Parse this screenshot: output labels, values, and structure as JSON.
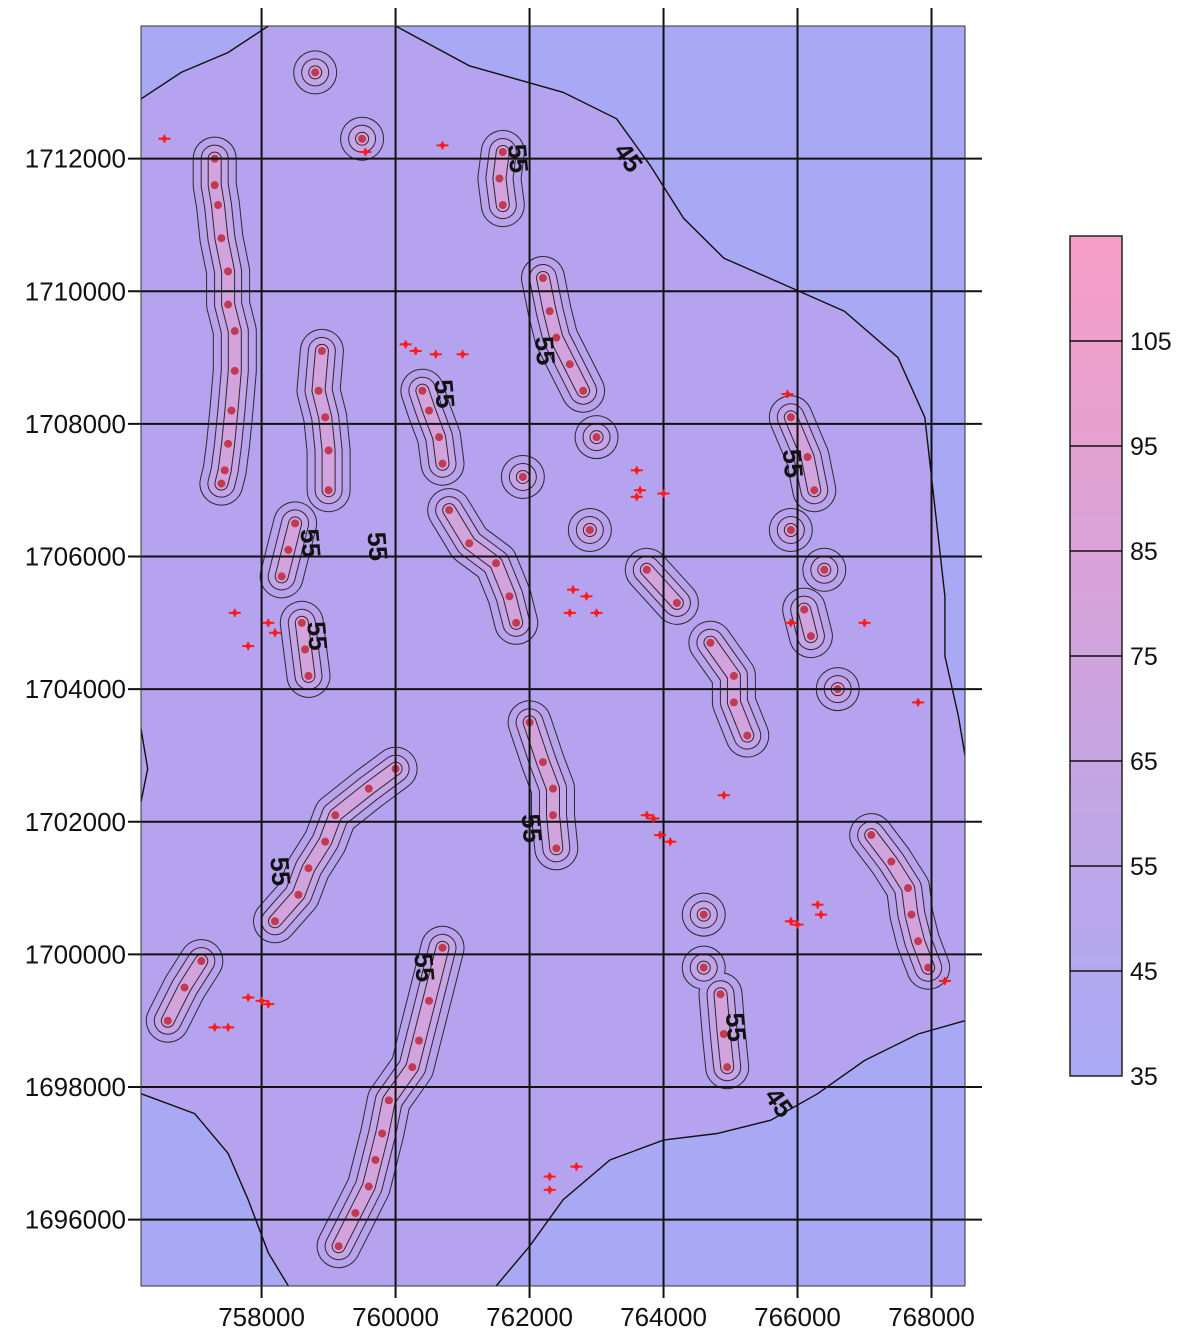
{
  "colors": {
    "low": "#a9a9f4",
    "high": "#f79ec6",
    "contour": "#111111",
    "marker": "#ff1a1a"
  },
  "chart_data": {
    "type": "heatmap",
    "title": "",
    "xlabel": "",
    "ylabel": "",
    "xlim": [
      756200,
      768500
    ],
    "ylim": [
      1695000,
      1714000
    ],
    "x_ticks": [
      758000,
      760000,
      762000,
      764000,
      766000,
      768000
    ],
    "y_ticks": [
      1696000,
      1698000,
      1700000,
      1702000,
      1704000,
      1706000,
      1708000,
      1710000,
      1712000
    ],
    "x_tick_labels": [
      "758000",
      "760000",
      "762000",
      "764000",
      "766000",
      "768000"
    ],
    "y_tick_labels": [
      "1696000",
      "1698000",
      "1700000",
      "1702000",
      "1704000",
      "1706000",
      "1708000",
      "1710000",
      "1712000"
    ],
    "grid": true,
    "colorbar": {
      "range": [
        35,
        115
      ],
      "ticks": [
        35,
        45,
        55,
        65,
        75,
        85,
        95,
        105
      ],
      "tick_labels": [
        "35",
        "45",
        "55",
        "65",
        "75",
        "85",
        "95",
        "105"
      ],
      "placement": "right"
    },
    "contour_levels": [
      45,
      55
    ],
    "contour_labels": [
      {
        "text": "45",
        "x": 763450,
        "y": 1712000
      },
      {
        "text": "45",
        "x": 765700,
        "y": 1697750
      },
      {
        "text": "55",
        "x": 761800,
        "y": 1712000
      },
      {
        "text": "55",
        "x": 762200,
        "y": 1709100
      },
      {
        "text": "55",
        "x": 760700,
        "y": 1708450
      },
      {
        "text": "55",
        "x": 759700,
        "y": 1706150
      },
      {
        "text": "55",
        "x": 758700,
        "y": 1706200
      },
      {
        "text": "55",
        "x": 758800,
        "y": 1704800
      },
      {
        "text": "55",
        "x": 765900,
        "y": 1707400
      },
      {
        "text": "55",
        "x": 762000,
        "y": 1701900
      },
      {
        "text": "55",
        "x": 758250,
        "y": 1701250
      },
      {
        "text": "55",
        "x": 760400,
        "y": 1699800
      },
      {
        "text": "55",
        "x": 765050,
        "y": 1698900
      }
    ],
    "hotspot_lines": [
      [
        [
          757300,
          1712000
        ],
        [
          757300,
          1711600
        ],
        [
          757350,
          1711300
        ],
        [
          757400,
          1710800
        ],
        [
          757500,
          1710300
        ],
        [
          757500,
          1709800
        ],
        [
          757600,
          1709400
        ],
        [
          757600,
          1708800
        ],
        [
          757550,
          1708200
        ],
        [
          757500,
          1707700
        ],
        [
          757450,
          1707300
        ],
        [
          757400,
          1707100
        ]
      ],
      [
        [
          758900,
          1709100
        ],
        [
          758850,
          1708500
        ],
        [
          758950,
          1708100
        ],
        [
          759000,
          1707600
        ],
        [
          759000,
          1707000
        ]
      ],
      [
        [
          758500,
          1706500
        ],
        [
          758400,
          1706100
        ],
        [
          758300,
          1705700
        ]
      ],
      [
        [
          758600,
          1705000
        ],
        [
          758650,
          1704600
        ],
        [
          758700,
          1704200
        ]
      ],
      [
        [
          760400,
          1708500
        ],
        [
          760500,
          1708200
        ],
        [
          760650,
          1707800
        ],
        [
          760700,
          1707400
        ]
      ],
      [
        [
          760800,
          1706700
        ],
        [
          761100,
          1706200
        ],
        [
          761500,
          1705900
        ],
        [
          761700,
          1705400
        ],
        [
          761800,
          1705000
        ]
      ],
      [
        [
          762200,
          1710200
        ],
        [
          762300,
          1709700
        ],
        [
          762400,
          1709300
        ],
        [
          762600,
          1708900
        ],
        [
          762800,
          1708500
        ]
      ],
      [
        [
          761600,
          1712100
        ],
        [
          761550,
          1711700
        ],
        [
          761600,
          1711300
        ]
      ],
      [
        [
          763750,
          1705800
        ],
        [
          764200,
          1705300
        ]
      ],
      [
        [
          764700,
          1704700
        ],
        [
          765050,
          1704200
        ],
        [
          765050,
          1703800
        ],
        [
          765250,
          1703300
        ]
      ],
      [
        [
          765900,
          1708100
        ],
        [
          766150,
          1707500
        ],
        [
          766250,
          1707000
        ]
      ],
      [
        [
          766100,
          1705200
        ],
        [
          766200,
          1704800
        ]
      ],
      [
        [
          762000,
          1703500
        ],
        [
          762200,
          1702900
        ],
        [
          762350,
          1702500
        ],
        [
          762350,
          1702100
        ],
        [
          762400,
          1701600
        ]
      ],
      [
        [
          760000,
          1702800
        ],
        [
          759600,
          1702500
        ],
        [
          759100,
          1702100
        ],
        [
          758950,
          1701700
        ],
        [
          758700,
          1701300
        ],
        [
          758550,
          1700900
        ],
        [
          758200,
          1700500
        ]
      ],
      [
        [
          757100,
          1699900
        ],
        [
          756850,
          1699500
        ],
        [
          756600,
          1699000
        ]
      ],
      [
        [
          760700,
          1700100
        ],
        [
          760500,
          1699300
        ],
        [
          760350,
          1698700
        ],
        [
          760250,
          1698300
        ],
        [
          759900,
          1697800
        ],
        [
          759800,
          1697300
        ],
        [
          759700,
          1696900
        ],
        [
          759600,
          1696500
        ],
        [
          759400,
          1696100
        ],
        [
          759150,
          1695600
        ]
      ],
      [
        [
          767100,
          1701800
        ],
        [
          767400,
          1701400
        ],
        [
          767650,
          1701000
        ],
        [
          767700,
          1700600
        ],
        [
          767800,
          1700200
        ],
        [
          767950,
          1699800
        ]
      ],
      [
        [
          764850,
          1699400
        ],
        [
          764900,
          1698800
        ],
        [
          764950,
          1698300
        ]
      ]
    ],
    "hotspot_points": [
      [
        758800,
        1713300
      ],
      [
        759500,
        1712300
      ],
      [
        763000,
        1707800
      ],
      [
        761900,
        1707200
      ],
      [
        762900,
        1706400
      ],
      [
        766400,
        1705800
      ],
      [
        766600,
        1704000
      ],
      [
        765900,
        1706400
      ],
      [
        764600,
        1700600
      ],
      [
        764600,
        1699800
      ]
    ],
    "sample_markers": [
      [
        756550,
        1712300
      ],
      [
        760700,
        1712200
      ],
      [
        759550,
        1712100
      ],
      [
        760150,
        1709200
      ],
      [
        760300,
        1709100
      ],
      [
        760600,
        1709050
      ],
      [
        761000,
        1709050
      ],
      [
        765850,
        1708450
      ],
      [
        763600,
        1707300
      ],
      [
        763650,
        1707000
      ],
      [
        763600,
        1706900
      ],
      [
        764000,
        1706950
      ],
      [
        762650,
        1705500
      ],
      [
        762850,
        1705400
      ],
      [
        762600,
        1705150
      ],
      [
        763000,
        1705150
      ],
      [
        757600,
        1705150
      ],
      [
        758100,
        1705000
      ],
      [
        758200,
        1704850
      ],
      [
        757800,
        1704650
      ],
      [
        765900,
        1705000
      ],
      [
        767000,
        1705000
      ],
      [
        767800,
        1703800
      ],
      [
        764900,
        1702400
      ],
      [
        763750,
        1702100
      ],
      [
        763850,
        1702050
      ],
      [
        763950,
        1701800
      ],
      [
        764100,
        1701700
      ],
      [
        766300,
        1700750
      ],
      [
        766350,
        1700600
      ],
      [
        765900,
        1700500
      ],
      [
        766000,
        1700450
      ],
      [
        757800,
        1699350
      ],
      [
        758000,
        1699300
      ],
      [
        758100,
        1699250
      ],
      [
        757300,
        1698900
      ],
      [
        757500,
        1698900
      ],
      [
        768200,
        1699600
      ],
      [
        762700,
        1696800
      ],
      [
        762300,
        1696650
      ],
      [
        762300,
        1696450
      ]
    ],
    "background_contour_45": [
      [
        [
          756200,
          1712900
        ],
        [
          756800,
          1713300
        ],
        [
          757500,
          1713600
        ],
        [
          758100,
          1714000
        ]
      ],
      [
        [
          760000,
          1714000
        ],
        [
          761100,
          1713400
        ],
        [
          762500,
          1713000
        ],
        [
          763300,
          1712600
        ],
        [
          763800,
          1711900
        ],
        [
          764300,
          1711100
        ],
        [
          764900,
          1710500
        ],
        [
          765800,
          1710100
        ],
        [
          766700,
          1709700
        ],
        [
          767500,
          1709000
        ],
        [
          767900,
          1708100
        ],
        [
          768000,
          1707200
        ],
        [
          768100,
          1706300
        ],
        [
          768200,
          1705400
        ],
        [
          768200,
          1704500
        ],
        [
          768400,
          1703600
        ],
        [
          768500,
          1703000
        ]
      ],
      [
        [
          756200,
          1703400
        ],
        [
          756300,
          1702800
        ],
        [
          756200,
          1702300
        ]
      ],
      [
        [
          756200,
          1697900
        ],
        [
          757000,
          1697600
        ],
        [
          757500,
          1697000
        ],
        [
          757800,
          1696300
        ],
        [
          758100,
          1695500
        ],
        [
          758400,
          1695000
        ]
      ],
      [
        [
          768500,
          1699000
        ],
        [
          767800,
          1698800
        ],
        [
          767000,
          1698400
        ],
        [
          766300,
          1697900
        ],
        [
          765600,
          1697500
        ],
        [
          764800,
          1697300
        ],
        [
          764000,
          1697200
        ],
        [
          763200,
          1696900
        ],
        [
          762500,
          1696300
        ],
        [
          762000,
          1695600
        ],
        [
          761500,
          1695000
        ]
      ]
    ]
  }
}
